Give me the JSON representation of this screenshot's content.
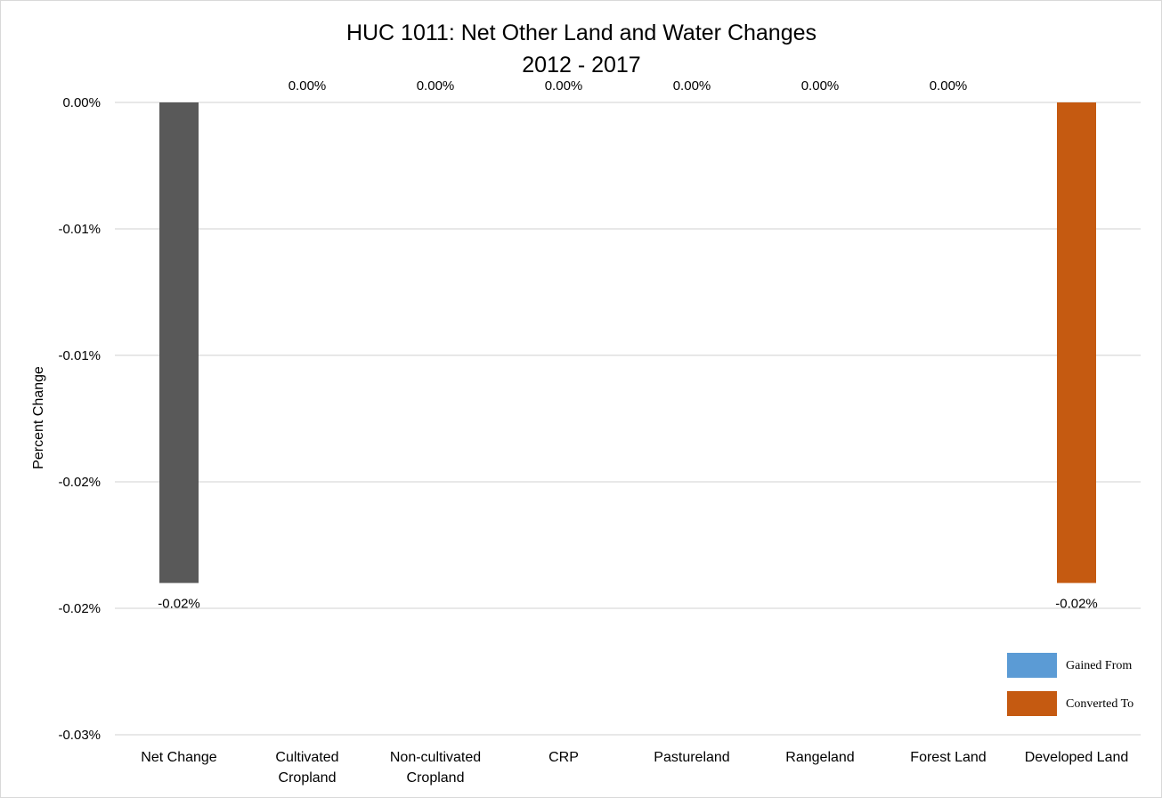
{
  "chart_data": {
    "type": "bar",
    "title": "HUC 1011: Net Other Land and Water Changes",
    "subtitle": "2012 - 2017",
    "ylabel": "Percent Change",
    "xlabel": "",
    "categories": [
      "Net Change",
      "Cultivated Cropland",
      "Non-cultivated Cropland",
      "CRP",
      "Pastureland",
      "Rangeland",
      "Forest Land",
      "Developed Land"
    ],
    "category_lines": [
      [
        "Net Change"
      ],
      [
        "Cultivated",
        "Cropland"
      ],
      [
        "Non-cultivated",
        "Cropland"
      ],
      [
        "CRP"
      ],
      [
        "Pastureland"
      ],
      [
        "Rangeland"
      ],
      [
        "Forest Land"
      ],
      [
        "Developed Land"
      ]
    ],
    "values": [
      -0.019,
      0,
      0,
      0,
      0,
      0,
      0,
      -0.019
    ],
    "data_labels": [
      "-0.02%",
      "0.00%",
      "0.00%",
      "0.00%",
      "0.00%",
      "0.00%",
      "0.00%",
      "-0.02%"
    ],
    "bar_colors": [
      "#595959",
      "#5b9bd5",
      "#5b9bd5",
      "#5b9bd5",
      "#5b9bd5",
      "#5b9bd5",
      "#5b9bd5",
      "#c55a11"
    ],
    "yticks": [
      0,
      -0.005,
      -0.01,
      -0.015,
      -0.02,
      -0.025
    ],
    "ytick_labels": [
      "0.00%",
      "-0.01%",
      "-0.01%",
      "-0.02%",
      "-0.02%",
      "-0.03%"
    ],
    "ylim": [
      -0.025,
      0
    ],
    "grid": true,
    "legend": {
      "position": "bottom-right",
      "entries": [
        {
          "name": "Gained From",
          "color": "#5b9bd5"
        },
        {
          "name": "Converted To",
          "color": "#c55a11"
        }
      ]
    }
  }
}
